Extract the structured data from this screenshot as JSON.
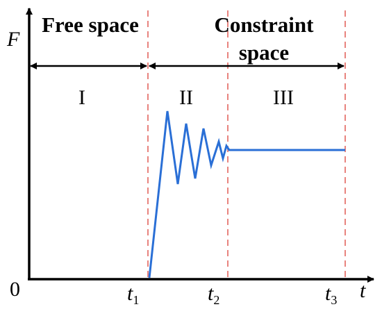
{
  "axes": {
    "y_label": "F",
    "x_label": "t",
    "origin": "0"
  },
  "regions": [
    {
      "title": "Free space",
      "numeral": "I"
    },
    {
      "title": "Constraint space",
      "numeral": "II"
    },
    {
      "numeral": "III"
    }
  ],
  "time_marks": [
    {
      "main": "t",
      "sub": "1"
    },
    {
      "main": "t",
      "sub": "2"
    },
    {
      "main": "t",
      "sub": "3"
    }
  ]
}
